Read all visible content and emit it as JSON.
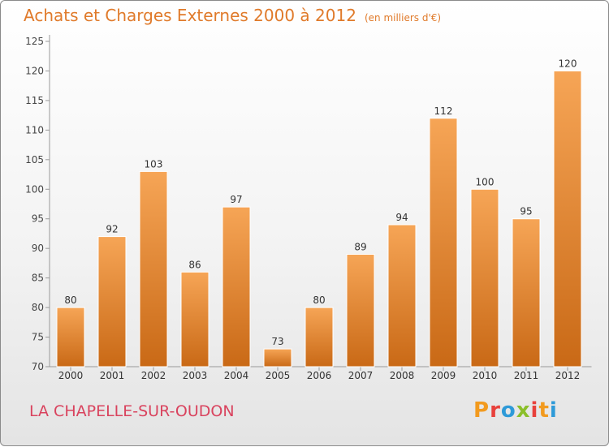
{
  "header": {
    "title": "Achats et Charges Externes 2000 à 2012",
    "unit": "(en milliers d'€)"
  },
  "footer": {
    "commune": "LA CHAPELLE-SUR-OUDON",
    "brand": "Proxiti",
    "brand_colors": [
      "#f29a1e",
      "#e8413c",
      "#2e9ad8",
      "#8bbf2a",
      "#e8413c",
      "#f29a1e",
      "#2e9ad8"
    ]
  },
  "colors": {
    "title": "#e07a2a",
    "commune": "#d9435e",
    "bar_top": "#f6a556",
    "bar_bottom": "#c96916"
  },
  "chart_data": {
    "type": "bar",
    "categories": [
      "2000",
      "2001",
      "2002",
      "2003",
      "2004",
      "2005",
      "2006",
      "2007",
      "2008",
      "2009",
      "2010",
      "2011",
      "2012"
    ],
    "values": [
      80,
      92,
      103,
      86,
      97,
      73,
      80,
      89,
      94,
      112,
      100,
      95,
      120
    ],
    "ylim": [
      70,
      125
    ],
    "yticks": [
      70,
      75,
      80,
      85,
      90,
      95,
      100,
      105,
      110,
      115,
      120,
      125
    ],
    "grid": false,
    "data_labels": true
  }
}
